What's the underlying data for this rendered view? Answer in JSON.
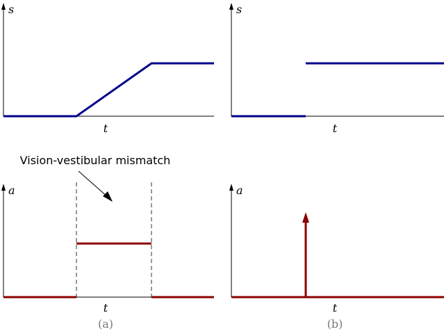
{
  "panels": {
    "a": {
      "caption": "(a)",
      "top": {
        "ylabel": "s",
        "xlabel": "t"
      },
      "bottom": {
        "ylabel": "a",
        "xlabel": "t"
      }
    },
    "b": {
      "caption": "(b)",
      "top": {
        "ylabel": "s",
        "xlabel": "t"
      },
      "bottom": {
        "ylabel": "a",
        "xlabel": "t"
      }
    }
  },
  "annotation": {
    "text": "Vision-vestibular mismatch"
  },
  "colors": {
    "position_signal": "#00008b",
    "acceleration_signal": "#8b0000"
  }
}
